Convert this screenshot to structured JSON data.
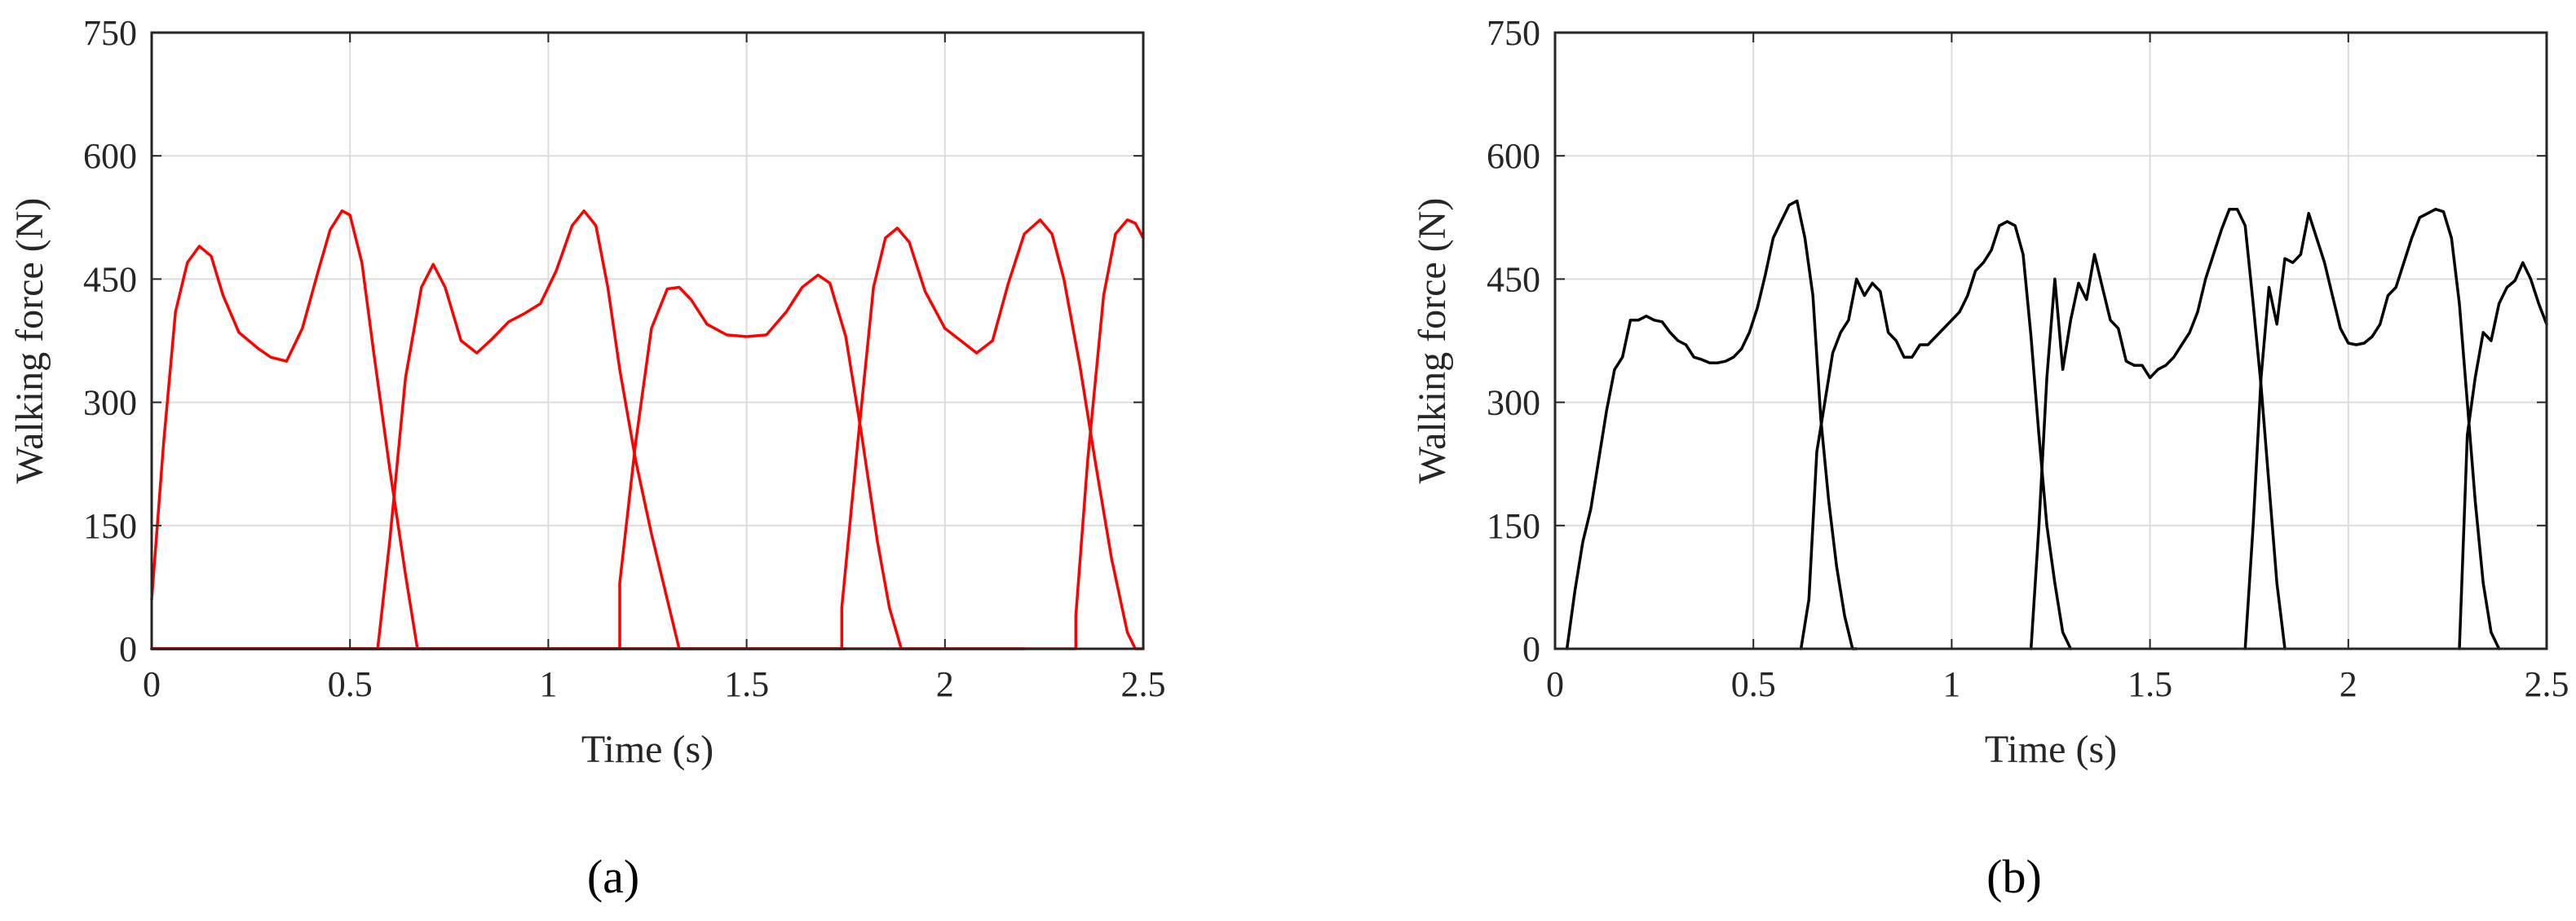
{
  "figure": {
    "panels": [
      {
        "id": "a",
        "caption": "(a)"
      },
      {
        "id": "b",
        "caption": "(b)"
      }
    ]
  },
  "chart_data": [
    {
      "type": "line",
      "panel": "(a)",
      "xlabel": "Time (s)",
      "ylabel": "Walking force (N)",
      "xlim": [
        0,
        2.5
      ],
      "ylim": [
        0,
        750
      ],
      "xticks": [
        0,
        0.5,
        1,
        1.5,
        2,
        2.5
      ],
      "xtick_labels": [
        "0",
        "0.5",
        "1",
        "1.5",
        "2",
        "2.5"
      ],
      "yticks": [
        0,
        150,
        300,
        450,
        600,
        750
      ],
      "ytick_labels": [
        "0",
        "150",
        "300",
        "450",
        "600",
        "750"
      ],
      "grid": true,
      "color": "#ff0000",
      "series": [
        {
          "x": [
            0,
            0.03,
            0.06,
            0.09,
            0.12,
            0.15,
            0.18,
            0.22,
            0.27,
            0.3,
            0.34,
            0.38,
            0.42,
            0.45,
            0.48,
            0.5,
            0.53,
            0.56,
            0.6,
            0.64,
            0.67,
            0.67,
            0.72,
            1.0,
            1.1,
            1.18
          ],
          "y": [
            60,
            250,
            410,
            470,
            490,
            478,
            430,
            385,
            365,
            355,
            350,
            390,
            460,
            510,
            533,
            528,
            470,
            360,
            220,
            90,
            0,
            0,
            0,
            0,
            0,
            0
          ]
        },
        {
          "x": [
            0,
            0.3,
            0.57,
            0.57,
            0.6,
            0.64,
            0.68,
            0.71,
            0.74,
            0.78,
            0.82,
            0.86,
            0.9,
            0.94,
            0.98,
            1.02,
            1.06,
            1.09,
            1.12,
            1.15,
            1.18,
            1.22,
            1.26,
            1.3,
            1.33,
            1.33,
            1.6,
            1.75
          ],
          "y": [
            0,
            0,
            0,
            0,
            130,
            330,
            440,
            468,
            440,
            375,
            360,
            378,
            398,
            408,
            420,
            460,
            515,
            533,
            515,
            440,
            340,
            230,
            140,
            60,
            0,
            0,
            0,
            0
          ]
        },
        {
          "x": [
            0,
            0.8,
            1.18,
            1.18,
            1.22,
            1.26,
            1.3,
            1.33,
            1.36,
            1.4,
            1.45,
            1.5,
            1.55,
            1.6,
            1.64,
            1.68,
            1.71,
            1.75,
            1.79,
            1.83,
            1.86,
            1.89,
            1.89,
            2.2
          ],
          "y": [
            0,
            0,
            0,
            80,
            250,
            390,
            438,
            440,
            425,
            395,
            382,
            380,
            382,
            410,
            440,
            455,
            445,
            380,
            260,
            130,
            50,
            0,
            0,
            0
          ]
        },
        {
          "x": [
            0,
            1.4,
            1.74,
            1.74,
            1.78,
            1.82,
            1.85,
            1.88,
            1.91,
            1.95,
            2.0,
            2.04,
            2.08,
            2.12,
            2.16,
            2.2,
            2.24,
            2.27,
            2.3,
            2.34,
            2.38,
            2.42,
            2.46,
            2.48,
            2.48,
            2.5
          ],
          "y": [
            0,
            0,
            0,
            50,
            250,
            440,
            500,
            512,
            495,
            435,
            390,
            375,
            360,
            375,
            445,
            505,
            522,
            505,
            450,
            345,
            225,
            110,
            20,
            0,
            0,
            0
          ]
        },
        {
          "x": [
            0,
            2.0,
            2.33,
            2.33,
            2.36,
            2.4,
            2.43,
            2.46,
            2.48,
            2.5
          ],
          "y": [
            0,
            0,
            0,
            40,
            230,
            430,
            505,
            522,
            518,
            500
          ]
        }
      ]
    },
    {
      "type": "line",
      "panel": "(b)",
      "xlabel": "Time (s)",
      "ylabel": "Walking force (N)",
      "xlim": [
        0,
        2.5
      ],
      "ylim": [
        0,
        750
      ],
      "xticks": [
        0,
        0.5,
        1,
        1.5,
        2,
        2.5
      ],
      "xtick_labels": [
        "0",
        "0.5",
        "1",
        "1.5",
        "2",
        "2.5"
      ],
      "yticks": [
        0,
        150,
        300,
        450,
        600,
        750
      ],
      "ytick_labels": [
        "0",
        "150",
        "300",
        "450",
        "600",
        "750"
      ],
      "grid": true,
      "color": "#000000",
      "series": [
        {
          "x": [
            0.03,
            0.05,
            0.07,
            0.09,
            0.11,
            0.13,
            0.15,
            0.17,
            0.19,
            0.21,
            0.23,
            0.25,
            0.27,
            0.29,
            0.31,
            0.33,
            0.35,
            0.37,
            0.39,
            0.41,
            0.43,
            0.45,
            0.47,
            0.49,
            0.51,
            0.53,
            0.55,
            0.57,
            0.59,
            0.61,
            0.63,
            0.65,
            0.67,
            0.69,
            0.71,
            0.73,
            0.75,
            0.76
          ],
          "y": [
            0,
            70,
            130,
            170,
            230,
            290,
            340,
            355,
            400,
            400,
            405,
            400,
            398,
            385,
            375,
            370,
            355,
            352,
            348,
            348,
            350,
            355,
            365,
            385,
            415,
            455,
            500,
            520,
            540,
            545,
            500,
            430,
            280,
            180,
            100,
            40,
            0,
            0
          ]
        },
        {
          "x": [
            0.62,
            0.64,
            0.66,
            0.68,
            0.7,
            0.72,
            0.74,
            0.76,
            0.78,
            0.8,
            0.82,
            0.84,
            0.86,
            0.88,
            0.9,
            0.92,
            0.94,
            0.96,
            0.98,
            1.0,
            1.02,
            1.04,
            1.06,
            1.08,
            1.1,
            1.12,
            1.14,
            1.16,
            1.18,
            1.2,
            1.22,
            1.24,
            1.26,
            1.28,
            1.3
          ],
          "y": [
            0,
            60,
            240,
            300,
            360,
            385,
            400,
            450,
            430,
            445,
            435,
            385,
            375,
            355,
            355,
            370,
            370,
            380,
            390,
            400,
            410,
            430,
            460,
            470,
            485,
            515,
            520,
            515,
            480,
            380,
            260,
            150,
            80,
            20,
            0
          ]
        },
        {
          "x": [
            1.2,
            1.22,
            1.24,
            1.26,
            1.28,
            1.3,
            1.32,
            1.34,
            1.36,
            1.38,
            1.4,
            1.42,
            1.44,
            1.46,
            1.48,
            1.5,
            1.52,
            1.54,
            1.56,
            1.58,
            1.6,
            1.62,
            1.64,
            1.66,
            1.68,
            1.7,
            1.72,
            1.74,
            1.76,
            1.78,
            1.8,
            1.82,
            1.84
          ],
          "y": [
            0,
            150,
            330,
            450,
            340,
            400,
            445,
            425,
            480,
            440,
            400,
            390,
            350,
            345,
            345,
            330,
            340,
            345,
            355,
            370,
            385,
            410,
            450,
            480,
            510,
            535,
            535,
            515,
            420,
            320,
            200,
            80,
            0
          ]
        },
        {
          "x": [
            1.74,
            1.76,
            1.78,
            1.8,
            1.82,
            1.84,
            1.86,
            1.88,
            1.9,
            1.92,
            1.94,
            1.96,
            1.98,
            2.0,
            2.02,
            2.04,
            2.06,
            2.08,
            2.1,
            2.12,
            2.14,
            2.16,
            2.18,
            2.2,
            2.22,
            2.24,
            2.26,
            2.28,
            2.3,
            2.32,
            2.34,
            2.36,
            2.38
          ],
          "y": [
            0,
            150,
            330,
            440,
            395,
            475,
            470,
            480,
            530,
            500,
            470,
            430,
            390,
            372,
            370,
            372,
            380,
            395,
            430,
            440,
            470,
            500,
            525,
            530,
            535,
            532,
            500,
            420,
            300,
            180,
            80,
            20,
            0
          ]
        },
        {
          "x": [
            2.28,
            2.3,
            2.32,
            2.34,
            2.36,
            2.38,
            2.4,
            2.42,
            2.44,
            2.46,
            2.48,
            2.5
          ],
          "y": [
            0,
            260,
            330,
            385,
            375,
            420,
            440,
            448,
            470,
            450,
            420,
            395
          ]
        }
      ]
    }
  ]
}
